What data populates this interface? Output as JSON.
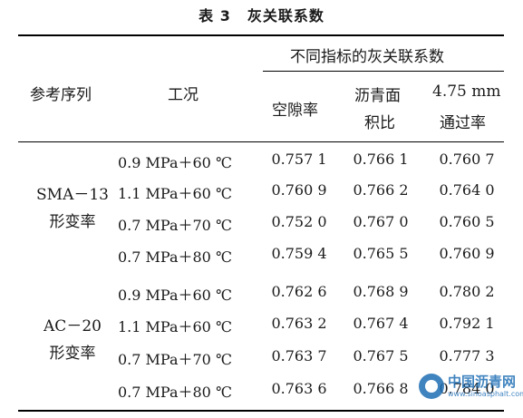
{
  "table": {
    "title_label": "表 3",
    "title_text": "灰关联系数",
    "headers": {
      "ref_seq": "参考序列",
      "condition": "工况",
      "group": "不同指标的灰关联系数",
      "col1": "空隙率",
      "col2_line1": "沥青面",
      "col2_line2": "积比",
      "col3_line1": "4.75 mm",
      "col3_line2": "通过率"
    },
    "groups": [
      {
        "label_line1": "SMA－13",
        "label_line2": "形变率",
        "rows": [
          {
            "condition": "0.9 MPa＋60 ℃",
            "v1": "0.757 1",
            "v2": "0.766 1",
            "v3": "0.760 7"
          },
          {
            "condition": "1.1 MPa＋60 ℃",
            "v1": "0.760 9",
            "v2": "0.766 2",
            "v3": "0.764 0"
          },
          {
            "condition": "0.7 MPa＋70 ℃",
            "v1": "0.752 0",
            "v2": "0.767 0",
            "v3": "0.760 5"
          },
          {
            "condition": "0.7 MPa＋80 ℃",
            "v1": "0.759 4",
            "v2": "0.765 5",
            "v3": "0.760 9"
          }
        ]
      },
      {
        "label_line1": "AC－20",
        "label_line2": "形变率",
        "rows": [
          {
            "condition": "0.9 MPa＋60 ℃",
            "v1": "0.762 6",
            "v2": "0.768 9",
            "v3": "0.780 2"
          },
          {
            "condition": "1.1 MPa＋60 ℃",
            "v1": "0.763 2",
            "v2": "0.767 4",
            "v3": "0.792 1"
          },
          {
            "condition": "0.7 MPa＋70 ℃",
            "v1": "0.763 7",
            "v2": "0.767 5",
            "v3": "0.777 3"
          },
          {
            "condition": "0.7 MPa＋80 ℃",
            "v1": "0.763 6",
            "v2": "0.766 8",
            "v3": "0.784 0"
          }
        ]
      }
    ]
  },
  "watermark": {
    "name": "中国沥青网",
    "url": "www.sinoasphalt.com"
  }
}
